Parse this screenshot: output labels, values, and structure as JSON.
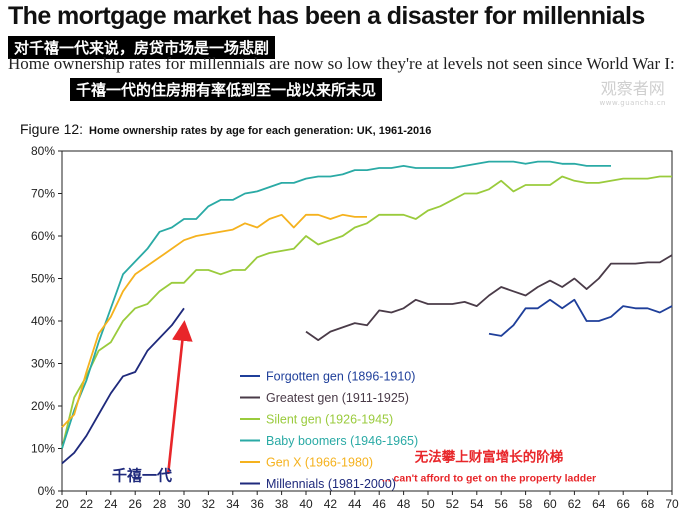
{
  "header": {
    "title": "The mortgage market has been a disaster for millennials",
    "cn_banner_a": "对千禧一代来说，",
    "cn_banner_b": "房贷市场是一场悲剧",
    "subtitle": "Home ownership rates for millennials are now so low they're at levels not seen since World War I:",
    "cn_subtitle": "千禧一代的住房拥有率低到至一战以来所未见",
    "watermark_main": "观察者网",
    "watermark_sub": "www.guancha.cn"
  },
  "figure": {
    "label": "Figure 12:",
    "caption": "Home ownership rates by age for each generation: UK, 1961-2016"
  },
  "chart_data": {
    "type": "line",
    "title": "Home ownership rates by age for each generation: UK, 1961-2016",
    "xlabel": "",
    "ylabel": "",
    "xlim": [
      20,
      70
    ],
    "ylim": [
      0,
      80
    ],
    "x_ticks": [
      "20",
      "22",
      "24",
      "26",
      "28",
      "30",
      "32",
      "34",
      "36",
      "38",
      "40",
      "42",
      "44",
      "46",
      "48",
      "50",
      "52",
      "54",
      "56",
      "58",
      "60",
      "62",
      "64",
      "66",
      "68",
      "70"
    ],
    "y_ticks": [
      "0%",
      "10%",
      "20%",
      "30%",
      "40%",
      "50%",
      "60%",
      "70%",
      "80%"
    ],
    "series": [
      {
        "name": "Forgotten gen (1896-1910)",
        "color": "#1f3f9a",
        "x": [
          55,
          56,
          57,
          58,
          59,
          60,
          61,
          62,
          63,
          64,
          65,
          66,
          67,
          68,
          69,
          70
        ],
        "y": [
          37,
          36.5,
          39,
          43,
          43,
          45,
          43,
          45,
          40,
          40,
          41,
          43.5,
          43,
          43,
          42,
          43.5
        ]
      },
      {
        "name": "Greatest gen (1911-1925)",
        "color": "#4a3b48",
        "x": [
          40,
          41,
          42,
          43,
          44,
          45,
          46,
          47,
          48,
          49,
          50,
          51,
          52,
          53,
          54,
          55,
          56,
          57,
          58,
          59,
          60,
          61,
          62,
          63,
          64,
          65,
          66,
          67,
          68,
          69,
          70
        ],
        "y": [
          37.5,
          35.5,
          37.5,
          38.5,
          39.5,
          39,
          42.5,
          42,
          43,
          45,
          44,
          44,
          44,
          44.5,
          43.5,
          46,
          48,
          47,
          46,
          48,
          49.5,
          48,
          50,
          47.5,
          50,
          53.5,
          53.5,
          53.5,
          53.8,
          53.8,
          55.5
        ]
      },
      {
        "name": "Silent gen (1926-1945)",
        "color": "#9acb3c",
        "x": [
          20,
          21,
          22,
          23,
          24,
          25,
          26,
          27,
          28,
          29,
          30,
          31,
          32,
          33,
          34,
          35,
          36,
          37,
          38,
          39,
          40,
          41,
          42,
          43,
          44,
          45,
          46,
          47,
          48,
          49,
          50,
          51,
          52,
          53,
          54,
          55,
          56,
          57,
          58,
          59,
          60,
          61,
          62,
          63,
          64,
          65,
          66,
          67,
          68,
          69,
          70
        ],
        "y": [
          10,
          22,
          27,
          33,
          35,
          40,
          43,
          44,
          47,
          49,
          49,
          52,
          52,
          51,
          52,
          52,
          55,
          56,
          56.5,
          57,
          60,
          58,
          59,
          60,
          62,
          63,
          65,
          65,
          65,
          64,
          66,
          67,
          68.5,
          70,
          70,
          71,
          73,
          70.5,
          72,
          72,
          72,
          74,
          73,
          72.5,
          72.5,
          73,
          73.5,
          73.5,
          73.5,
          74,
          74
        ]
      },
      {
        "name": "Baby boomers (1946-1965)",
        "color": "#2aaaa5",
        "x": [
          20,
          21,
          22,
          23,
          24,
          25,
          26,
          27,
          28,
          29,
          30,
          31,
          32,
          33,
          34,
          35,
          36,
          37,
          38,
          39,
          40,
          41,
          42,
          43,
          44,
          45,
          46,
          47,
          48,
          49,
          50,
          51,
          52,
          53,
          54,
          55,
          56,
          57,
          58,
          59,
          60,
          61,
          62,
          63,
          64,
          65
        ],
        "y": [
          10,
          19,
          26,
          35,
          43,
          51,
          54,
          57,
          61,
          62,
          64,
          64,
          67,
          68.5,
          68.5,
          70,
          70.5,
          71.5,
          72.5,
          72.5,
          73.5,
          74,
          74,
          74.5,
          75.5,
          75.5,
          76,
          76,
          76.5,
          76,
          76,
          76,
          76,
          76.5,
          77,
          77.5,
          77.5,
          77.5,
          77,
          77.5,
          77.5,
          77,
          77,
          76.5,
          76.5,
          76.5
        ]
      },
      {
        "name": "Gen X (1966-1980)",
        "color": "#f5b21e",
        "x": [
          20,
          21,
          22,
          23,
          24,
          25,
          26,
          27,
          28,
          29,
          30,
          31,
          32,
          33,
          34,
          35,
          36,
          37,
          38,
          39,
          40,
          41,
          42,
          43,
          44,
          45
        ],
        "y": [
          15,
          18,
          28,
          37,
          41,
          47,
          51,
          53,
          55,
          57,
          59,
          60,
          60.5,
          61,
          61.5,
          63,
          62,
          64,
          65,
          62,
          65,
          65,
          64,
          65,
          64.5,
          64.5
        ]
      },
      {
        "name": "Millennials (1981-2000)",
        "color": "#1f2a7c",
        "x": [
          20,
          21,
          22,
          23,
          24,
          25,
          26,
          27,
          28,
          29,
          30
        ],
        "y": [
          6.5,
          9,
          13,
          18,
          23,
          27,
          28,
          33,
          36,
          39,
          43
        ]
      }
    ],
    "annotations": {
      "cn_millennials": "千禧一代",
      "cn_ladder": "无法攀上财富增长的阶梯",
      "ladder": "... can't afford to get on the property ladder"
    },
    "arrow": {
      "from": [
        28.7,
        4
      ],
      "to": [
        30,
        39
      ]
    }
  }
}
